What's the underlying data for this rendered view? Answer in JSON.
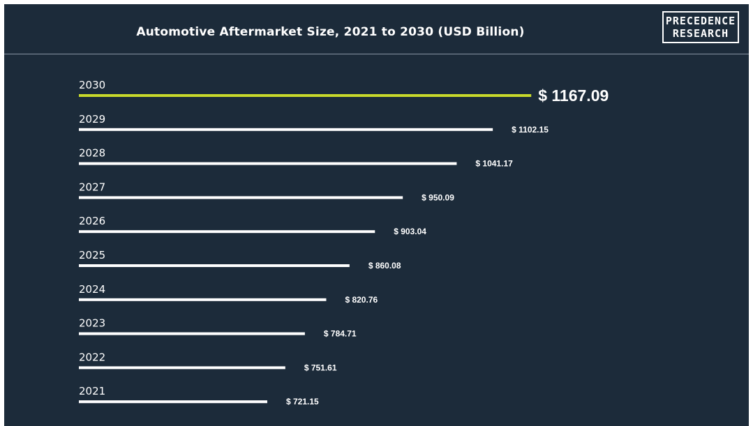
{
  "title": "Automotive Aftermarket Size, 2021 to 2030 (USD Billion)",
  "logo": {
    "line1": "PRECEDENCE",
    "line2": "RESEARCH"
  },
  "colors": {
    "background": "#1c2b3a",
    "bar": "#ffffff",
    "highlight": "#c8d92b"
  },
  "chart_data": {
    "type": "bar",
    "orientation": "horizontal",
    "categories": [
      "2030",
      "2029",
      "2028",
      "2027",
      "2026",
      "2025",
      "2024",
      "2023",
      "2022",
      "2021"
    ],
    "values": [
      1167.09,
      1102.15,
      1041.17,
      950.09,
      903.04,
      860.08,
      820.76,
      784.71,
      751.61,
      721.15
    ],
    "value_labels": [
      "$ 1167.09",
      "$ 1102.15",
      "$ 1041.17",
      "$ 950.09",
      "$ 903.04",
      "$ 860.08",
      "$ 820.76",
      "$ 784.71",
      "$ 751.61",
      "$ 721.15"
    ],
    "highlight_category": "2030",
    "title": "Automotive Aftermarket Size, 2021 to 2030 (USD Billion)",
    "xlabel": "",
    "ylabel": "",
    "grid": false,
    "legend": "none"
  }
}
